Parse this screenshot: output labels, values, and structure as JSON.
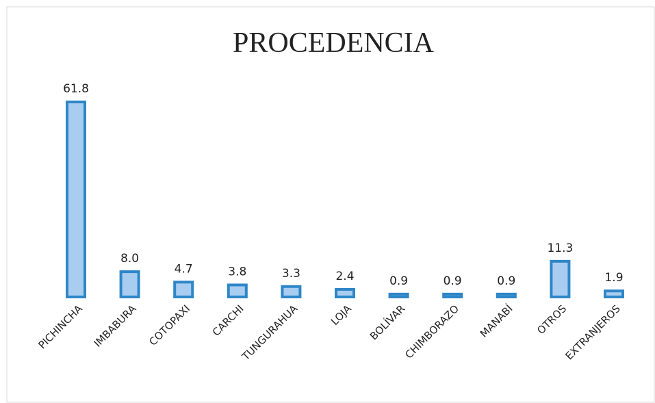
{
  "chart_data": {
    "type": "bar",
    "title": "PROCEDENCIA",
    "categories": [
      "PICHINCHA",
      "IMBABURA",
      "COTOPAXI",
      "CARCHI",
      "TUNGURAHUA",
      "LOJA",
      "BOLÍVAR",
      "CHIMBORAZO",
      "MANABÍ",
      "OTROS",
      "EXTRANJEROS"
    ],
    "values": [
      61.8,
      8.0,
      4.7,
      3.8,
      3.3,
      2.4,
      0.9,
      0.9,
      0.9,
      11.3,
      1.9
    ],
    "value_labels": [
      "61.8",
      "8.0",
      "4.7",
      "3.8",
      "3.3",
      "2.4",
      "0.9",
      "0.9",
      "0.9",
      "11.3",
      "1.9"
    ],
    "color": "#a9cdf0",
    "edge_color": "#2e86c8"
  }
}
